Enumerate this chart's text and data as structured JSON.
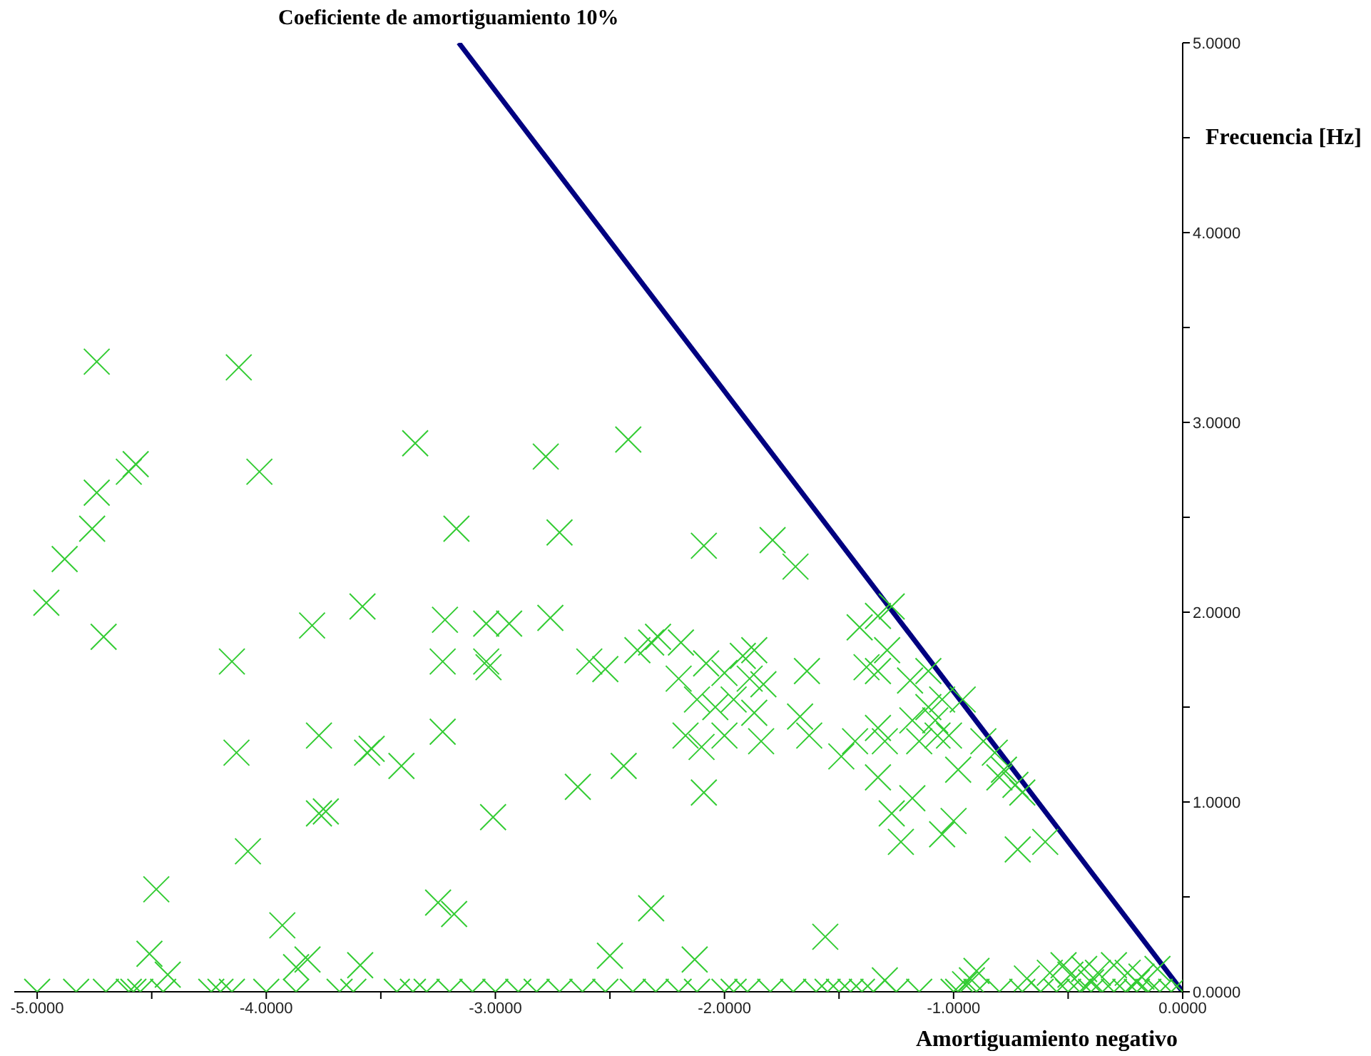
{
  "chart_data": {
    "type": "scatter",
    "xlabel": "Amortiguamiento negativo",
    "ylabel": "Frecuencia [Hz]",
    "xlim": [
      -5.1,
      0
    ],
    "ylim": [
      0,
      5
    ],
    "xticks": [
      {
        "value": -5,
        "label": "-5.0000"
      },
      {
        "value": -4.5,
        "label": null
      },
      {
        "value": -4,
        "label": "-4.0000"
      },
      {
        "value": -3.5,
        "label": null
      },
      {
        "value": -3,
        "label": "-3.0000"
      },
      {
        "value": -2.5,
        "label": null
      },
      {
        "value": -2,
        "label": "-2.0000"
      },
      {
        "value": -1.5,
        "label": null
      },
      {
        "value": -1,
        "label": "-1.0000"
      },
      {
        "value": -0.5,
        "label": null
      },
      {
        "value": 0,
        "label": "0.0000"
      }
    ],
    "yticks": [
      {
        "value": 0,
        "label": "0.0000"
      },
      {
        "value": 0.5,
        "label": null
      },
      {
        "value": 1,
        "label": "1.0000"
      },
      {
        "value": 1.5,
        "label": null
      },
      {
        "value": 2,
        "label": "2.0000"
      },
      {
        "value": 2.5,
        "label": null
      },
      {
        "value": 3,
        "label": "3.0000"
      },
      {
        "value": 3.5,
        "label": null
      },
      {
        "value": 4,
        "label": "4.0000"
      },
      {
        "value": 4.5,
        "label": null
      },
      {
        "value": 5,
        "label": "5.0000"
      }
    ],
    "series": [
      {
        "type": "scatter",
        "color": "#33cc33",
        "marker": "cross",
        "x": [
          -4.74,
          -4.12,
          -3.35,
          -2.42,
          -4.6,
          -4.57,
          -4.03,
          -2.78,
          -4.74,
          -4.76,
          -4.88,
          -3.17,
          -2.72,
          -2.09,
          -1.79,
          -1.69,
          -4.96,
          -4.71,
          -3.8,
          -3.58,
          -3.22,
          -3.04,
          -2.94,
          -2.76,
          -4.15,
          -3.23,
          -3.04,
          -3.03,
          -2.59,
          -2.52,
          -2.38,
          -2.32,
          -2.29,
          -2.19,
          -2.2,
          -2.08,
          -2.0,
          -1.92,
          -1.87,
          -1.89,
          -2.12,
          -2.04,
          -1.96,
          -2.0,
          -2.17,
          -1.87,
          -1.83,
          -2.1,
          -1.64,
          -1.67,
          -1.63,
          -1.84,
          -1.41,
          -1.33,
          -1.27,
          -1.38,
          -1.29,
          -1.33,
          -1.19,
          -1.11,
          -1.05,
          -0.96,
          -1.11,
          -1.18,
          -1.33,
          -1.43,
          -1.49,
          -1.3,
          -1.15,
          -1.07,
          -1.02,
          -1.08,
          -1.33,
          -1.27,
          -1.18,
          -1.23,
          -0.87,
          -0.82,
          -0.78,
          -0.73,
          -0.7,
          -0.8,
          -0.98,
          -1.0,
          -1.05,
          -0.72,
          -0.6,
          -4.13,
          -3.77,
          -3.56,
          -3.54,
          -3.41,
          -3.23,
          -2.64,
          -2.44,
          -2.09,
          -3.77,
          -3.74,
          -4.08,
          -3.01,
          -4.48,
          -3.93,
          -3.25,
          -3.18,
          -2.32,
          -4.51,
          -3.87,
          -3.82,
          -3.59,
          -2.5,
          -2.13,
          -1.56,
          -4.43,
          -0.58,
          -0.52,
          -0.49,
          -0.43,
          -0.37,
          -0.3,
          -0.24,
          -0.18,
          -0.11,
          -0.68,
          -0.92,
          -0.9,
          -0.95,
          -1.3,
          -0.4,
          -0.2,
          -5.0,
          -4.83,
          -4.7,
          -4.6,
          -4.58,
          -4.55,
          -4.45,
          -4.24,
          -4.2,
          -4.15,
          -4.0,
          -3.87,
          -3.68,
          -3.62,
          -3.43,
          -3.36,
          -3.3,
          -3.2,
          -3.1,
          -3.0,
          -2.9,
          -2.82,
          -2.72,
          -2.62,
          -2.52,
          -2.4,
          -2.3,
          -2.2,
          -2.12,
          -2.0,
          -1.96,
          -1.9,
          -1.8,
          -1.7,
          -1.6,
          -1.55,
          -1.5,
          -1.45,
          -1.4,
          -1.35,
          -1.25,
          -1.15,
          -1.0,
          -0.98,
          -0.9,
          -0.8,
          -0.7,
          -0.62,
          -0.55,
          -0.5,
          -0.45,
          -0.4,
          -0.35,
          -0.3,
          -0.25,
          -0.2,
          -0.15,
          -0.1,
          -0.05,
          0
        ],
        "values": [
          3.32,
          3.29,
          2.89,
          2.91,
          2.74,
          2.78,
          2.74,
          2.82,
          2.63,
          2.44,
          2.28,
          2.44,
          2.42,
          2.35,
          2.38,
          2.24,
          2.05,
          1.87,
          1.93,
          2.03,
          1.96,
          1.94,
          1.94,
          1.97,
          1.74,
          1.74,
          1.74,
          1.71,
          1.74,
          1.7,
          1.8,
          1.84,
          1.87,
          1.84,
          1.65,
          1.73,
          1.68,
          1.77,
          1.8,
          1.65,
          1.54,
          1.5,
          1.54,
          1.35,
          1.35,
          1.47,
          1.62,
          1.29,
          1.69,
          1.45,
          1.35,
          1.32,
          1.92,
          1.98,
          2.03,
          1.71,
          1.8,
          1.69,
          1.64,
          1.69,
          1.54,
          1.54,
          1.5,
          1.43,
          1.39,
          1.32,
          1.24,
          1.32,
          1.32,
          1.35,
          1.35,
          1.43,
          1.13,
          0.94,
          1.02,
          0.79,
          1.32,
          1.26,
          1.17,
          1.09,
          1.05,
          1.13,
          1.17,
          0.9,
          0.83,
          0.75,
          0.79,
          1.26,
          1.35,
          1.26,
          1.28,
          1.19,
          1.37,
          1.08,
          1.19,
          1.05,
          0.94,
          0.95,
          0.74,
          0.92,
          0.54,
          0.35,
          0.47,
          0.41,
          0.44,
          0.2,
          0.13,
          0.17,
          0.14,
          0.19,
          0.17,
          0.29,
          0.09,
          0.1,
          0.14,
          0.09,
          0.12,
          0.1,
          0.14,
          0.1,
          0.08,
          0.12,
          0.07,
          0.06,
          0.11,
          0.04,
          0.06,
          0.05,
          0.05,
          0,
          0,
          0,
          0,
          0,
          0,
          0,
          0,
          0,
          0,
          0,
          0,
          0,
          0,
          0,
          0,
          0,
          0,
          0,
          0,
          0,
          0,
          0,
          0,
          0,
          0,
          0,
          0,
          0,
          0,
          0,
          0,
          0,
          0,
          0,
          0,
          0,
          0,
          0,
          0,
          0,
          0,
          0,
          0,
          0,
          0,
          0,
          0,
          0,
          0,
          0,
          0,
          0,
          0,
          0,
          0,
          0,
          0,
          0,
          0
        ]
      },
      {
        "type": "line",
        "name": "Coeficiente de amortiguamiento 10%",
        "color": "#000080",
        "x": [
          -3.16,
          0
        ],
        "values": [
          5,
          0
        ]
      }
    ]
  }
}
